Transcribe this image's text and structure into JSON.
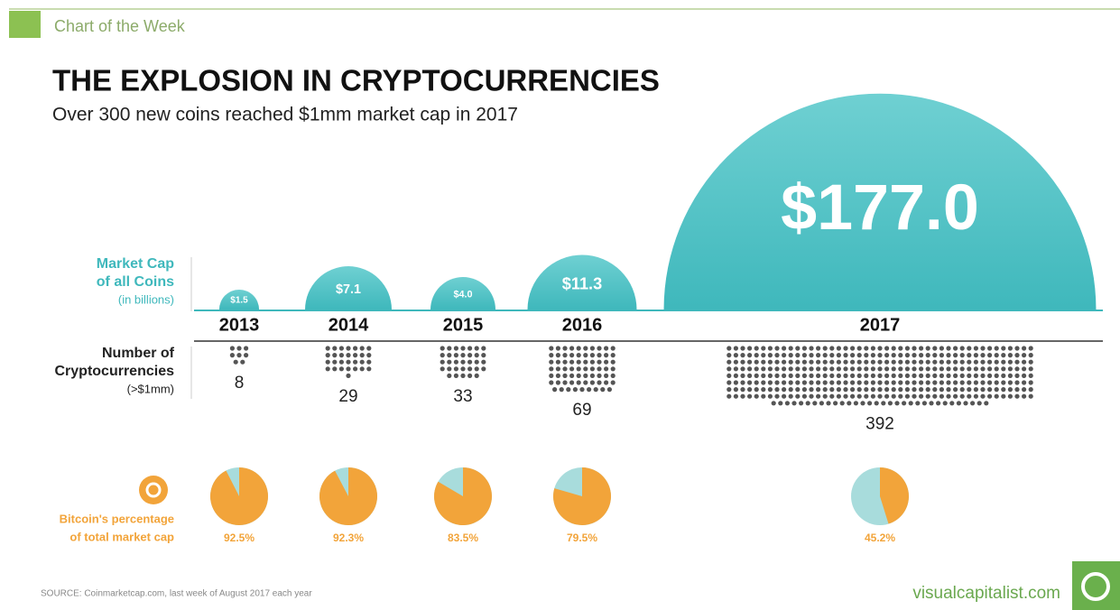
{
  "header": "Chart of the Week",
  "title": "THE EXPLOSION IN CRYPTOCURRENCIES",
  "subtitle": "Over 300 new coins reached $1mm market cap in 2017",
  "source": "SOURCE: Coinmarketcap.com, last week of August 2017 each year",
  "brand": "visualcapitalist.com",
  "chart_data": [
    {
      "type": "semicircle",
      "label": [
        "Market Cap",
        "of all Coins"
      ],
      "sublabel": "(in billions)",
      "categories": [
        "2013",
        "2014",
        "2015",
        "2016",
        "2017"
      ],
      "values": [
        1.5,
        7.1,
        4.0,
        11.3,
        177.0
      ],
      "value_labels": [
        "$1.5",
        "$7.1",
        "$4.0",
        "$11.3",
        "$177.0"
      ],
      "color": "#3fb8bc"
    },
    {
      "type": "dots",
      "label": [
        "Number of",
        "Cryptocurrencies"
      ],
      "sublabel": "(>$1mm)",
      "values": [
        8,
        29,
        33,
        69,
        392
      ],
      "color": "#555555"
    },
    {
      "type": "pie",
      "label": [
        "Bitcoin's percentage",
        "of total market cap"
      ],
      "values": [
        92.5,
        92.3,
        83.5,
        79.5,
        45.2
      ],
      "value_labels": [
        "92.5%",
        "92.3%",
        "83.5%",
        "79.5%",
        "45.2%"
      ],
      "color": "#f2a43a",
      "rest_color": "#a8dcdc"
    }
  ]
}
